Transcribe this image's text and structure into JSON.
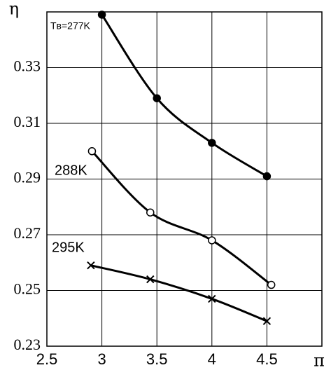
{
  "chart_data": {
    "type": "line",
    "x_label": "π",
    "y_label": "η",
    "xlim": [
      2.5,
      5
    ],
    "xticks": [
      2.5,
      3,
      3.5,
      4,
      4.5
    ],
    "ylim": [
      0.23,
      0.35
    ],
    "yticks": [
      0.23,
      0.25,
      0.27,
      0.29,
      0.31,
      0.33
    ],
    "grid": true,
    "series": [
      {
        "name": "Tв=277K",
        "color": "#000000",
        "marker": "filled-circle",
        "x": [
          3,
          3.5,
          4,
          4.5
        ],
        "values": [
          0.349,
          0.319,
          0.303,
          0.291
        ]
      },
      {
        "name": "288K",
        "color": "#000000",
        "marker": "open-circle",
        "x": [
          2.91,
          3.44,
          4,
          4.54
        ],
        "values": [
          0.3,
          0.278,
          0.268,
          0.252
        ]
      },
      {
        "name": "295K",
        "color": "#000000",
        "marker": "cross",
        "x": [
          2.9,
          3.44,
          4,
          4.5
        ],
        "values": [
          0.259,
          0.254,
          0.247,
          0.239
        ]
      }
    ]
  }
}
